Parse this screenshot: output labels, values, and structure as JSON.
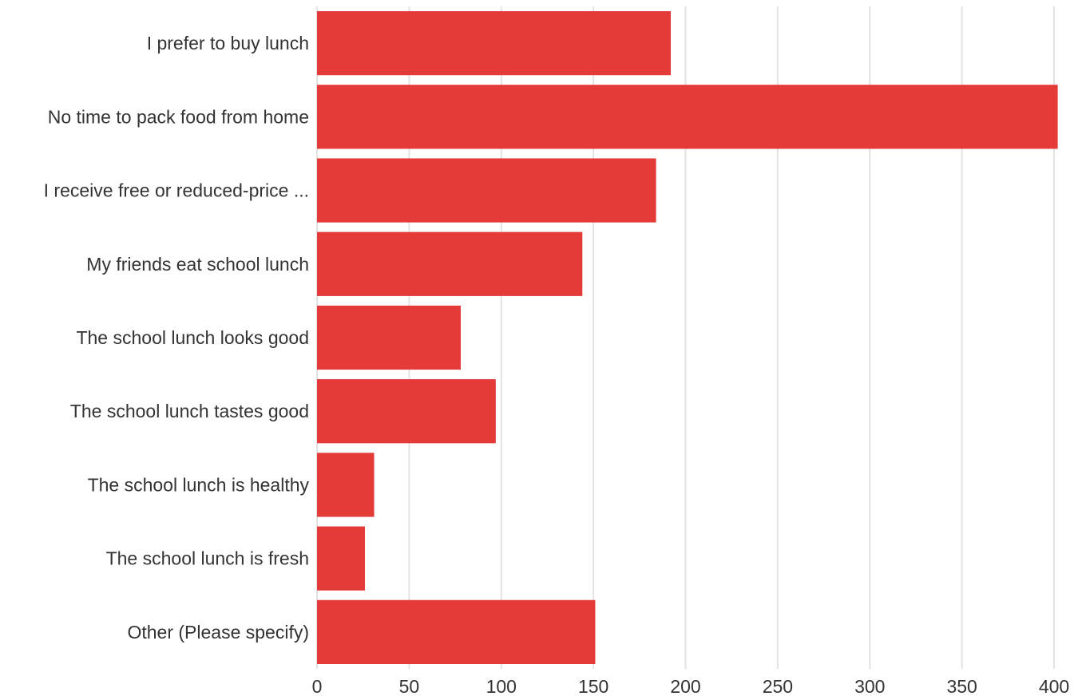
{
  "chart_data": {
    "type": "bar",
    "orientation": "horizontal",
    "categories": [
      "I prefer to buy lunch",
      "No time to pack food from home",
      "I receive free or reduced-price ...",
      "My friends eat school lunch",
      "The school lunch looks good",
      "The school lunch tastes good",
      "The school lunch is healthy",
      "The school lunch is fresh",
      "Other (Please specify)"
    ],
    "values": [
      192,
      402,
      184,
      144,
      78,
      97,
      31,
      26,
      151
    ],
    "title": "",
    "xlabel": "",
    "ylabel": "",
    "xlim": [
      0,
      400
    ],
    "xticks": [
      0,
      50,
      100,
      150,
      200,
      250,
      300,
      350,
      400
    ],
    "tick_labels": [
      "0",
      "50",
      "100",
      "150",
      "200",
      "250",
      "300",
      "350",
      "400"
    ],
    "grid": "vertical",
    "legend": "none",
    "bar_color": "#e53b38"
  }
}
